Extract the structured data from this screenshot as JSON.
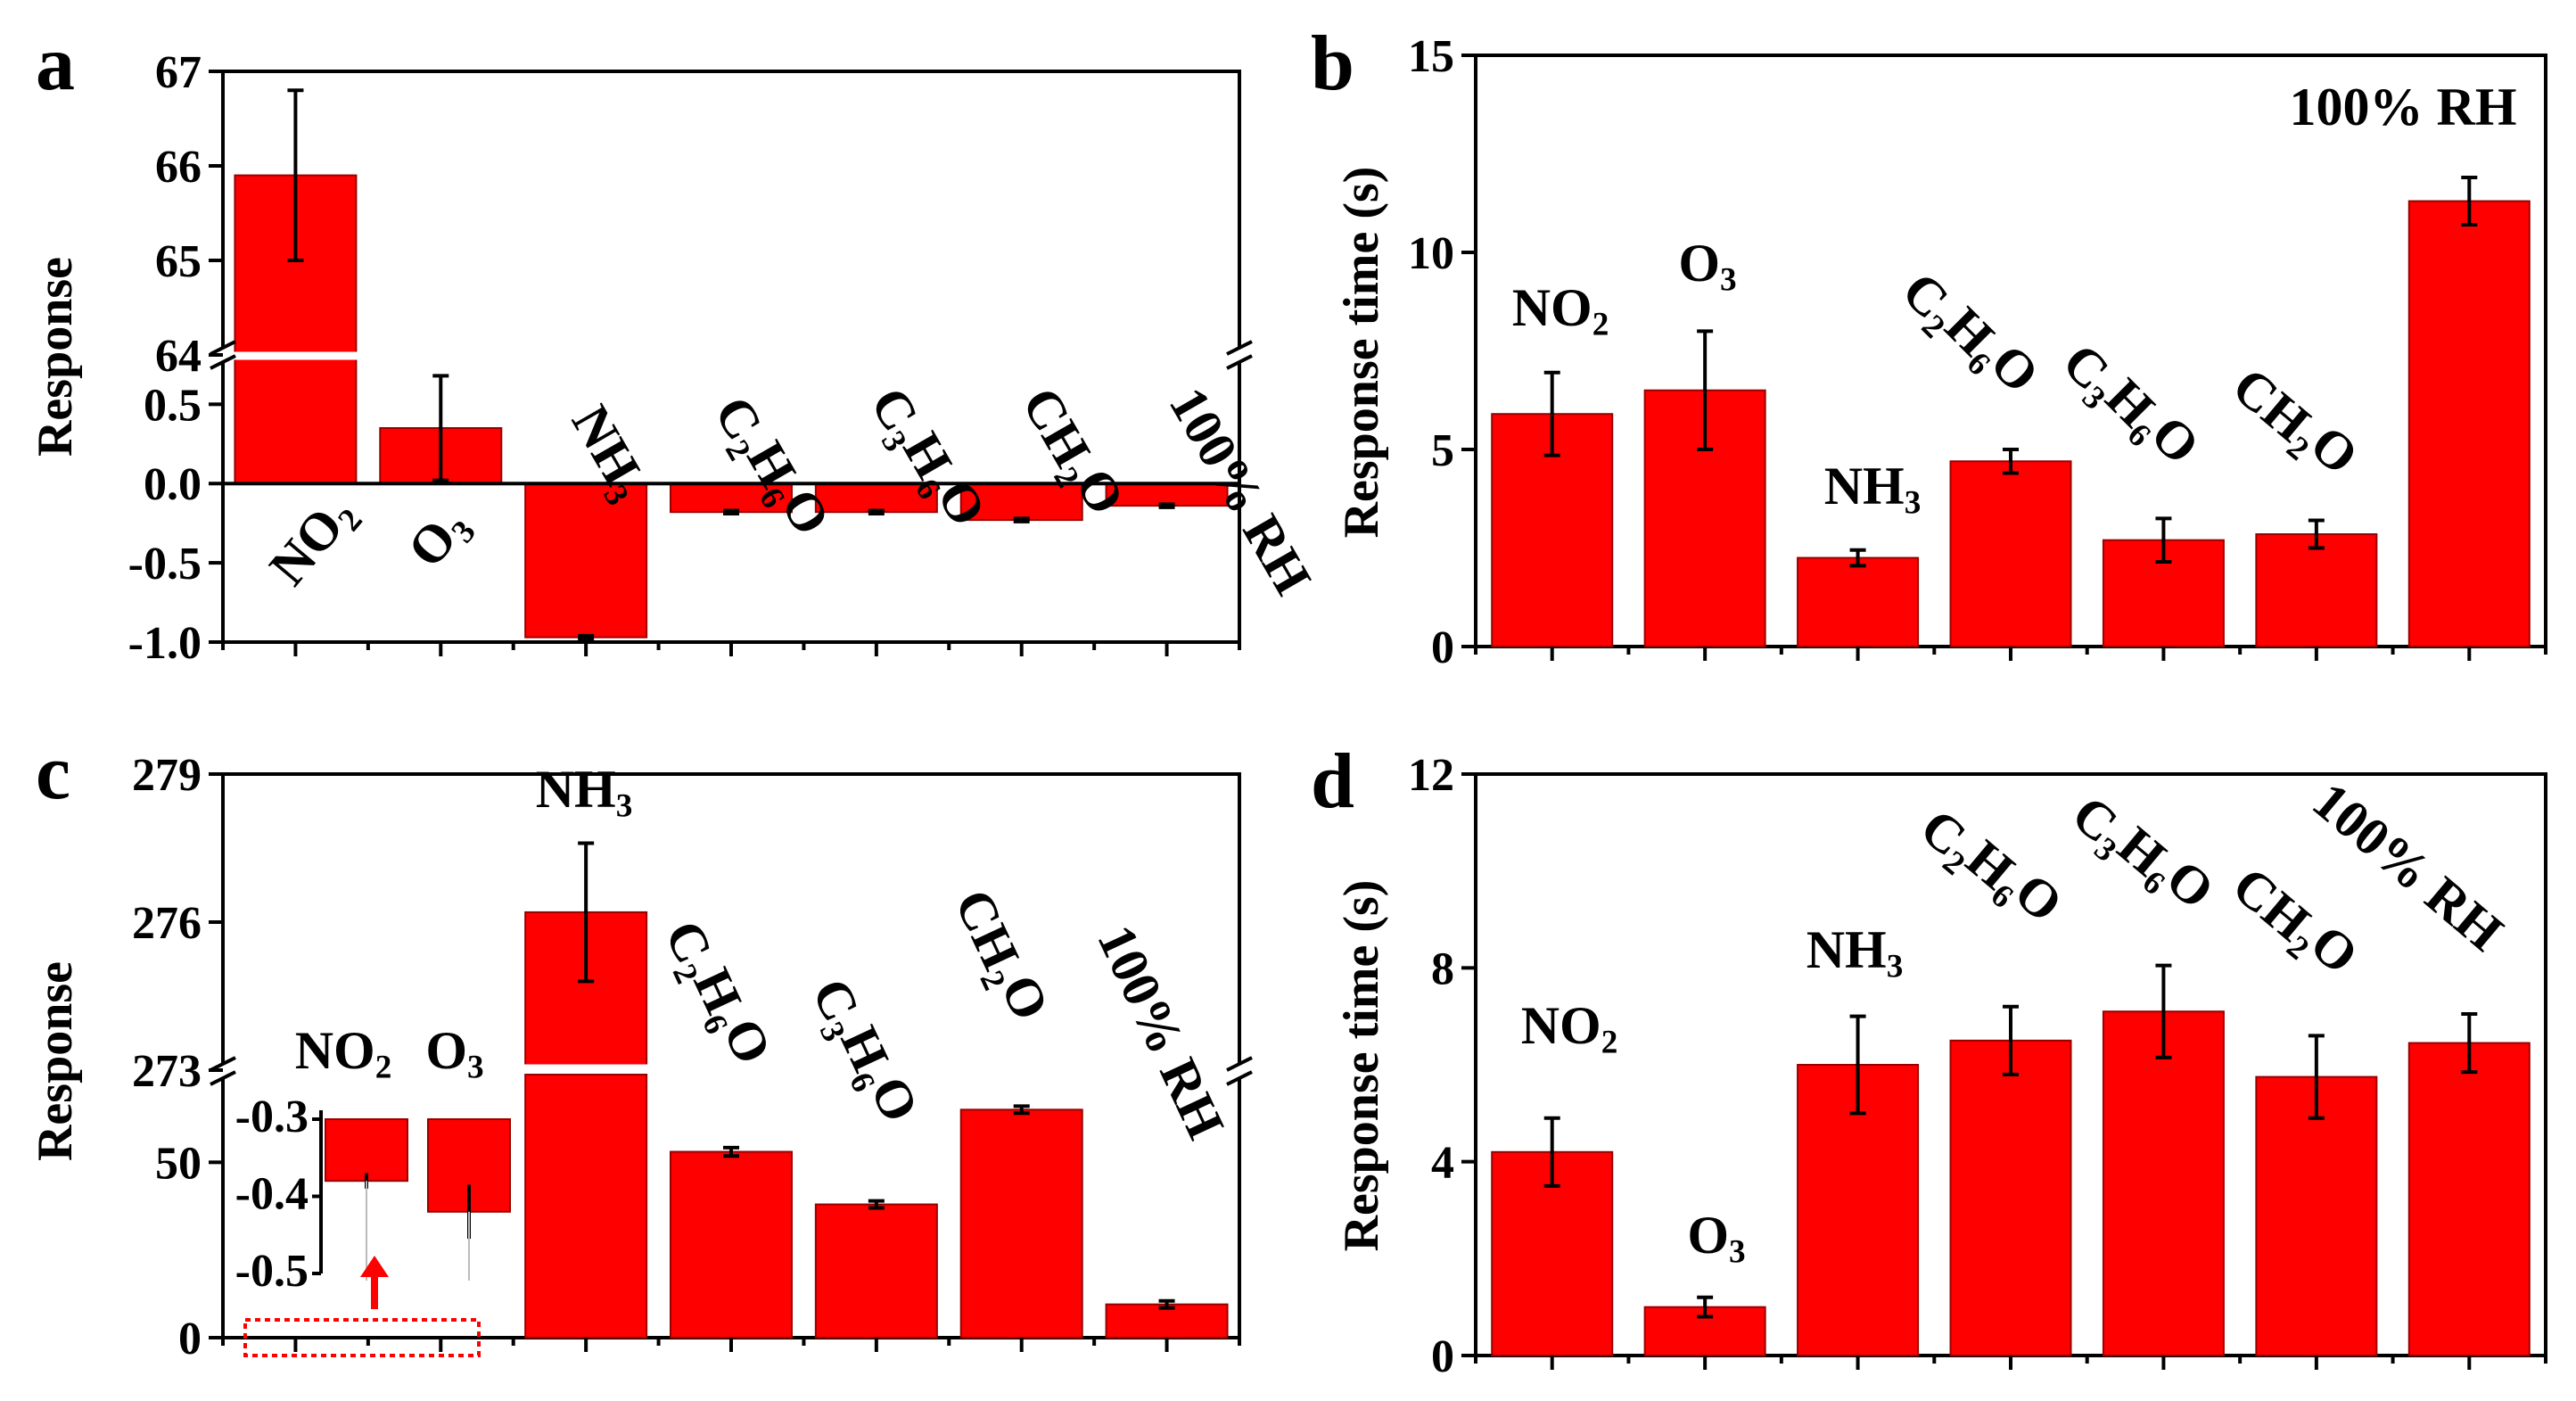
{
  "chart_data": [
    {
      "panel": "a",
      "type": "bar",
      "ylabel": "Response",
      "categories": [
        "NO2",
        "O3",
        "NH3",
        "C2H6O",
        "C3H6O",
        "CH2O",
        "100% RH"
      ],
      "category_labels": [
        {
          "main": "NO",
          "sub": "2",
          "rest": ""
        },
        {
          "main": "O",
          "sub": "3",
          "rest": ""
        },
        {
          "main": "NH",
          "sub": "3",
          "rest": ""
        },
        {
          "main": "C",
          "sub": "2",
          "rest": "H",
          "sub2": "6",
          "rest2": "O"
        },
        {
          "main": "C",
          "sub": "3",
          "rest": "H",
          "sub2": "6",
          "rest2": "O"
        },
        {
          "main": "CH",
          "sub": "2",
          "rest": "O"
        },
        {
          "main": "100% RH",
          "sub": "",
          "rest": ""
        }
      ],
      "values": [
        65.9,
        0.35,
        -0.97,
        -0.18,
        -0.18,
        -0.23,
        -0.14
      ],
      "errors": [
        0.9,
        0.33,
        0.01,
        0.01,
        0.01,
        0.01,
        0.01
      ],
      "y_axis_break": {
        "lower": [
          -1.0,
          0.8
        ],
        "upper": [
          64,
          67
        ]
      },
      "yticks_lower": [
        "-1.0",
        "-0.5",
        "0.0",
        "0.5"
      ],
      "yticks_upper": [
        "64",
        "65",
        "66",
        "67"
      ]
    },
    {
      "panel": "b",
      "type": "bar",
      "ylabel": "Response time (s)",
      "categories": [
        "NO2",
        "O3",
        "NH3",
        "C2H6O",
        "C3H6O",
        "CH2O",
        "100% RH"
      ],
      "values": [
        5.9,
        6.5,
        2.25,
        4.7,
        2.7,
        2.85,
        11.3
      ],
      "errors": [
        1.05,
        1.5,
        0.2,
        0.3,
        0.55,
        0.35,
        0.6
      ],
      "ylim": [
        0,
        15
      ],
      "yticks": [
        "0",
        "5",
        "10",
        "15"
      ]
    },
    {
      "panel": "c",
      "type": "bar",
      "ylabel": "Response",
      "categories": [
        "NO2",
        "O3",
        "NH3",
        "C2H6O",
        "C3H6O",
        "CH2O",
        "100% RH"
      ],
      "values": [
        -0.38,
        -0.42,
        276.2,
        53,
        38,
        65,
        9.5
      ],
      "errors": [
        0.01,
        0.035,
        1.4,
        1.2,
        1.0,
        1.0,
        1.0
      ],
      "y_axis_break": {
        "lower": [
          0,
          75
        ],
        "upper": [
          273,
          279
        ]
      },
      "yticks_lower": [
        "0",
        "50"
      ],
      "yticks_upper": [
        "273",
        "276",
        "279"
      ],
      "inset": {
        "categories": [
          "NO2",
          "O3"
        ],
        "values": [
          -0.38,
          -0.42
        ],
        "errors": [
          0.01,
          0.035
        ],
        "ylim": [
          -0.3,
          -0.5
        ],
        "yticks": [
          "-0.3",
          "-0.4",
          "-0.5"
        ]
      }
    },
    {
      "panel": "d",
      "type": "bar",
      "ylabel": "Response time (s)",
      "categories": [
        "NO2",
        "O3",
        "NH3",
        "C2H6O",
        "C3H6O",
        "CH2O",
        "100% RH"
      ],
      "values": [
        4.2,
        1.0,
        6.0,
        6.5,
        7.1,
        5.75,
        6.45
      ],
      "errors": [
        0.7,
        0.2,
        1.0,
        0.7,
        0.95,
        0.85,
        0.6
      ],
      "ylim": [
        0,
        12
      ],
      "yticks": [
        "0",
        "4",
        "8",
        "12"
      ]
    }
  ],
  "panel_labels": [
    "a",
    "b",
    "c",
    "d"
  ]
}
